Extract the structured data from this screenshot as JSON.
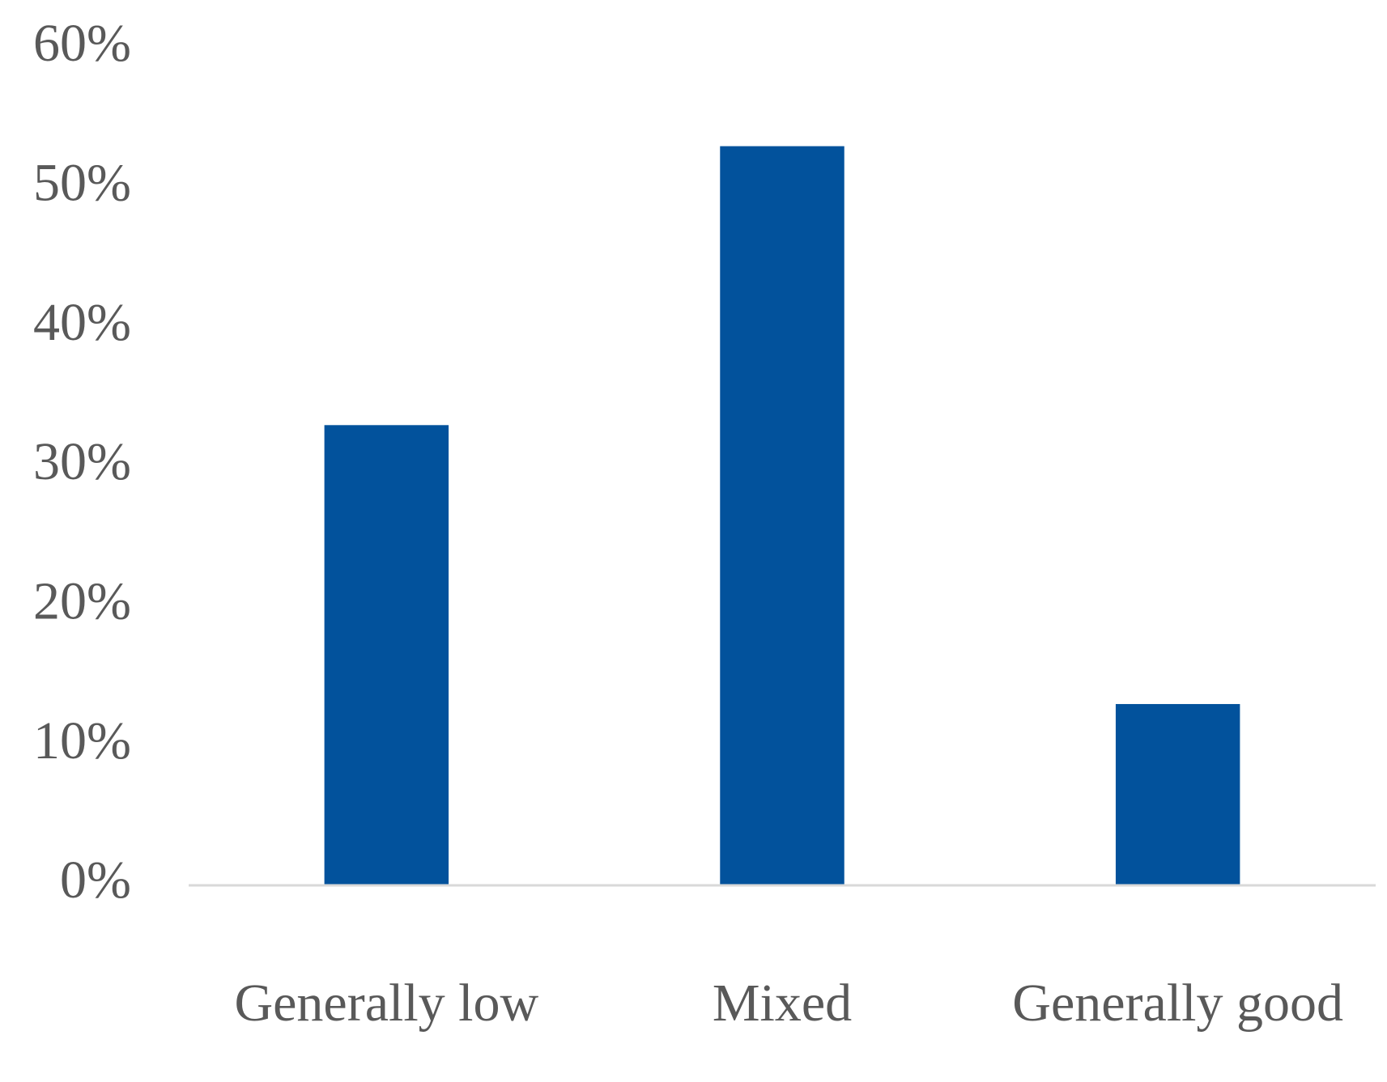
{
  "chart_data": {
    "type": "bar",
    "categories": [
      "Generally low",
      "Mixed",
      "Generally good"
    ],
    "values": [
      33,
      53,
      13
    ],
    "color": "#02529c",
    "ylim": [
      0,
      60
    ],
    "yticks": [
      {
        "value": 0,
        "label": "0%"
      },
      {
        "value": 10,
        "label": "10%"
      },
      {
        "value": 20,
        "label": "20%"
      },
      {
        "value": 30,
        "label": "30%"
      },
      {
        "value": 40,
        "label": "40%"
      },
      {
        "value": 50,
        "label": "50%"
      },
      {
        "value": 60,
        "label": "60%"
      }
    ],
    "grid": false
  }
}
